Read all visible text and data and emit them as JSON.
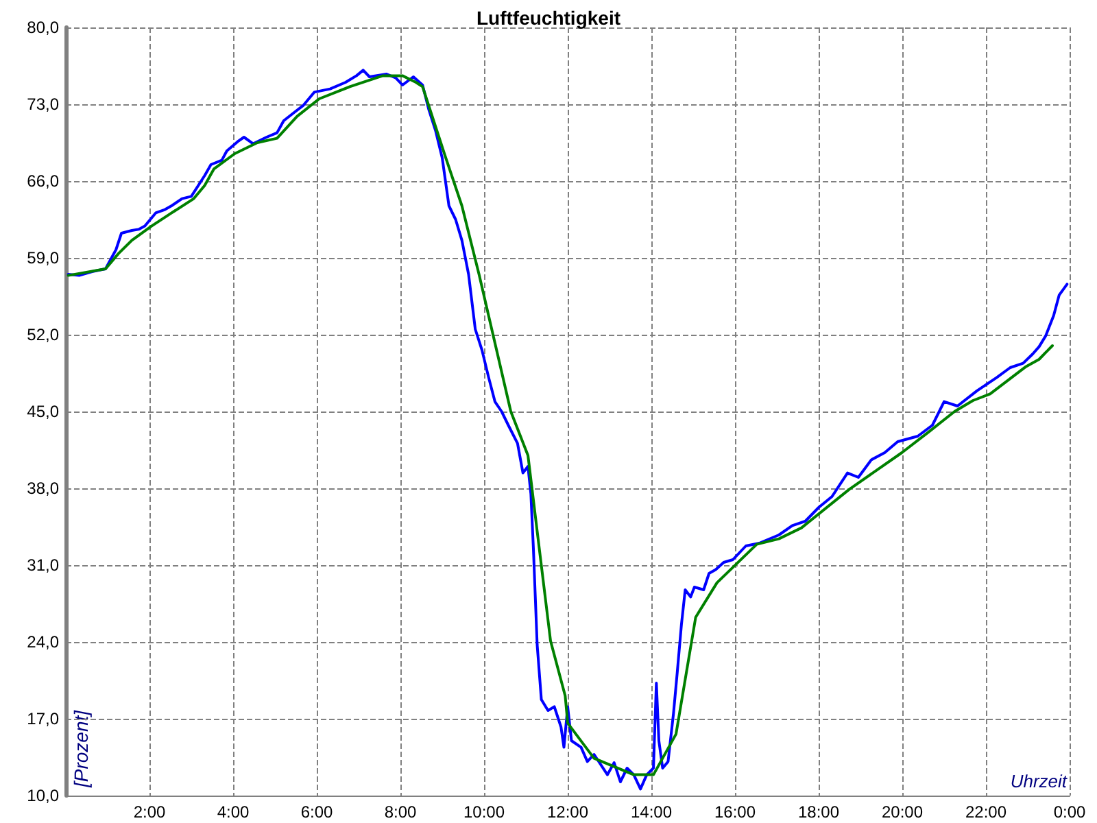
{
  "chart_data": {
    "type": "line",
    "title": "Luftfeuchtigkeit",
    "xlabel": "Uhrzeit",
    "ylabel": "[Prozent]",
    "xlim": [
      0,
      24
    ],
    "xticks": [
      {
        "value": 0,
        "label": null
      },
      {
        "value": 2,
        "label": "2:00"
      },
      {
        "value": 4,
        "label": "4:00"
      },
      {
        "value": 6,
        "label": "6:00"
      },
      {
        "value": 8,
        "label": "8:00"
      },
      {
        "value": 10,
        "label": "10:00"
      },
      {
        "value": 12,
        "label": "12:00"
      },
      {
        "value": 14,
        "label": "14:00"
      },
      {
        "value": 16,
        "label": "16:00"
      },
      {
        "value": 18,
        "label": "18:00"
      },
      {
        "value": 20,
        "label": "20:00"
      },
      {
        "value": 22,
        "label": "22:00"
      },
      {
        "value": 24,
        "label": "0:00"
      }
    ],
    "ylim": [
      10,
      80
    ],
    "yticks": [
      {
        "value": 10,
        "label": "10,0"
      },
      {
        "value": 17,
        "label": "17,0"
      },
      {
        "value": 24,
        "label": "24,0"
      },
      {
        "value": 31,
        "label": "31,0"
      },
      {
        "value": 38,
        "label": "38,0"
      },
      {
        "value": 45,
        "label": "45,0"
      },
      {
        "value": 52,
        "label": "52,0"
      },
      {
        "value": 59,
        "label": "59,0"
      },
      {
        "value": 66,
        "label": "66,0"
      },
      {
        "value": 73,
        "label": "73,0"
      },
      {
        "value": 80,
        "label": "80,0"
      }
    ],
    "grid": true,
    "marker": "none",
    "line_style": "solid",
    "series": [
      {
        "color": "#0000ff",
        "x": [
          0.06,
          0.32,
          0.63,
          0.95,
          1.2,
          1.33,
          1.58,
          1.74,
          1.89,
          2.15,
          2.37,
          2.53,
          2.78,
          3.0,
          3.32,
          3.47,
          3.73,
          3.85,
          4.11,
          4.26,
          4.48,
          4.8,
          5.05,
          5.21,
          5.46,
          5.68,
          5.94,
          6.32,
          6.69,
          6.95,
          7.11,
          7.26,
          7.67,
          7.89,
          8.05,
          8.31,
          8.53,
          8.68,
          8.84,
          9.0,
          9.16,
          9.32,
          9.47,
          9.63,
          9.79,
          9.95,
          10.11,
          10.26,
          10.42,
          10.58,
          10.8,
          10.93,
          11.05,
          11.12,
          11.18,
          11.27,
          11.37,
          11.53,
          11.68,
          11.84,
          11.91,
          12.0,
          12.09,
          12.32,
          12.47,
          12.63,
          12.95,
          13.11,
          13.26,
          13.42,
          13.58,
          13.74,
          13.89,
          14.05,
          14.12,
          14.18,
          14.27,
          14.4,
          14.53,
          14.62,
          14.72,
          14.81,
          14.94,
          15.03,
          15.25,
          15.38,
          15.54,
          15.73,
          15.95,
          16.26,
          16.58,
          17.05,
          17.37,
          17.68,
          18.0,
          18.32,
          18.69,
          18.95,
          19.26,
          19.58,
          19.89,
          20.37,
          20.72,
          21.0,
          21.32,
          21.79,
          22.26,
          22.58,
          22.89,
          23.12,
          23.27,
          23.43,
          23.62,
          23.75,
          23.94
        ],
        "values": [
          57.5,
          57.4,
          57.75,
          58,
          59.75,
          61.25,
          61.5,
          61.6,
          61.9,
          63.1,
          63.4,
          63.75,
          64.4,
          64.6,
          66.5,
          67.5,
          67.9,
          68.75,
          69.6,
          70,
          69.4,
          70,
          70.4,
          71.5,
          72.25,
          72.9,
          74.1,
          74.4,
          75,
          75.6,
          76.1,
          75.5,
          75.75,
          75.4,
          74.75,
          75.5,
          74.75,
          72.5,
          70.6,
          68.1,
          63.75,
          62.5,
          60.6,
          57.5,
          52.5,
          50.6,
          48.1,
          45.9,
          45,
          43.75,
          42.1,
          39.4,
          40,
          37.5,
          32.5,
          23.75,
          18.75,
          17.75,
          18.1,
          16.25,
          14.4,
          18.1,
          15,
          14.4,
          13.1,
          13.75,
          11.9,
          13,
          11.25,
          12.5,
          11.9,
          10.6,
          11.9,
          12.5,
          20.25,
          15,
          12.5,
          13.1,
          17.5,
          21.25,
          25.6,
          28.75,
          28.1,
          29,
          28.75,
          30.25,
          30.6,
          31.25,
          31.5,
          32.75,
          33,
          33.75,
          34.6,
          35,
          36.25,
          37.25,
          39.4,
          39,
          40.6,
          41.25,
          42.25,
          42.75,
          43.75,
          45.9,
          45.5,
          46.9,
          48.1,
          49,
          49.4,
          50.25,
          50.9,
          51.9,
          53.75,
          55.6,
          56.6
        ]
      },
      {
        "color": "#008000",
        "x": [
          0.06,
          0.95,
          1.26,
          1.58,
          2.05,
          2.53,
          3.06,
          3.32,
          3.54,
          4.04,
          4.58,
          5.05,
          5.53,
          6.06,
          6.79,
          7.58,
          8.05,
          8.37,
          8.53,
          9.06,
          9.47,
          9.88,
          10.64,
          11.05,
          11.27,
          11.59,
          11.94,
          12.0,
          12.63,
          13.58,
          14.05,
          14.59,
          15.06,
          15.57,
          16.52,
          17.05,
          17.59,
          18.73,
          19.99,
          20.62,
          21.25,
          21.69,
          22.1,
          22.96,
          23.27,
          23.59
        ],
        "values": [
          57.4,
          58,
          59.4,
          60.6,
          61.9,
          63.1,
          64.4,
          65.6,
          67.1,
          68.5,
          69.5,
          69.9,
          71.9,
          73.5,
          74.6,
          75.6,
          75.6,
          75,
          74.6,
          68.4,
          63.75,
          57.5,
          45,
          41,
          34.1,
          24.1,
          19.1,
          16.6,
          13.4,
          11.9,
          11.9,
          15.6,
          26.25,
          29.4,
          32.9,
          33.4,
          34.4,
          37.9,
          41.25,
          43.1,
          45,
          46,
          46.6,
          49.1,
          49.75,
          51
        ]
      }
    ]
  }
}
